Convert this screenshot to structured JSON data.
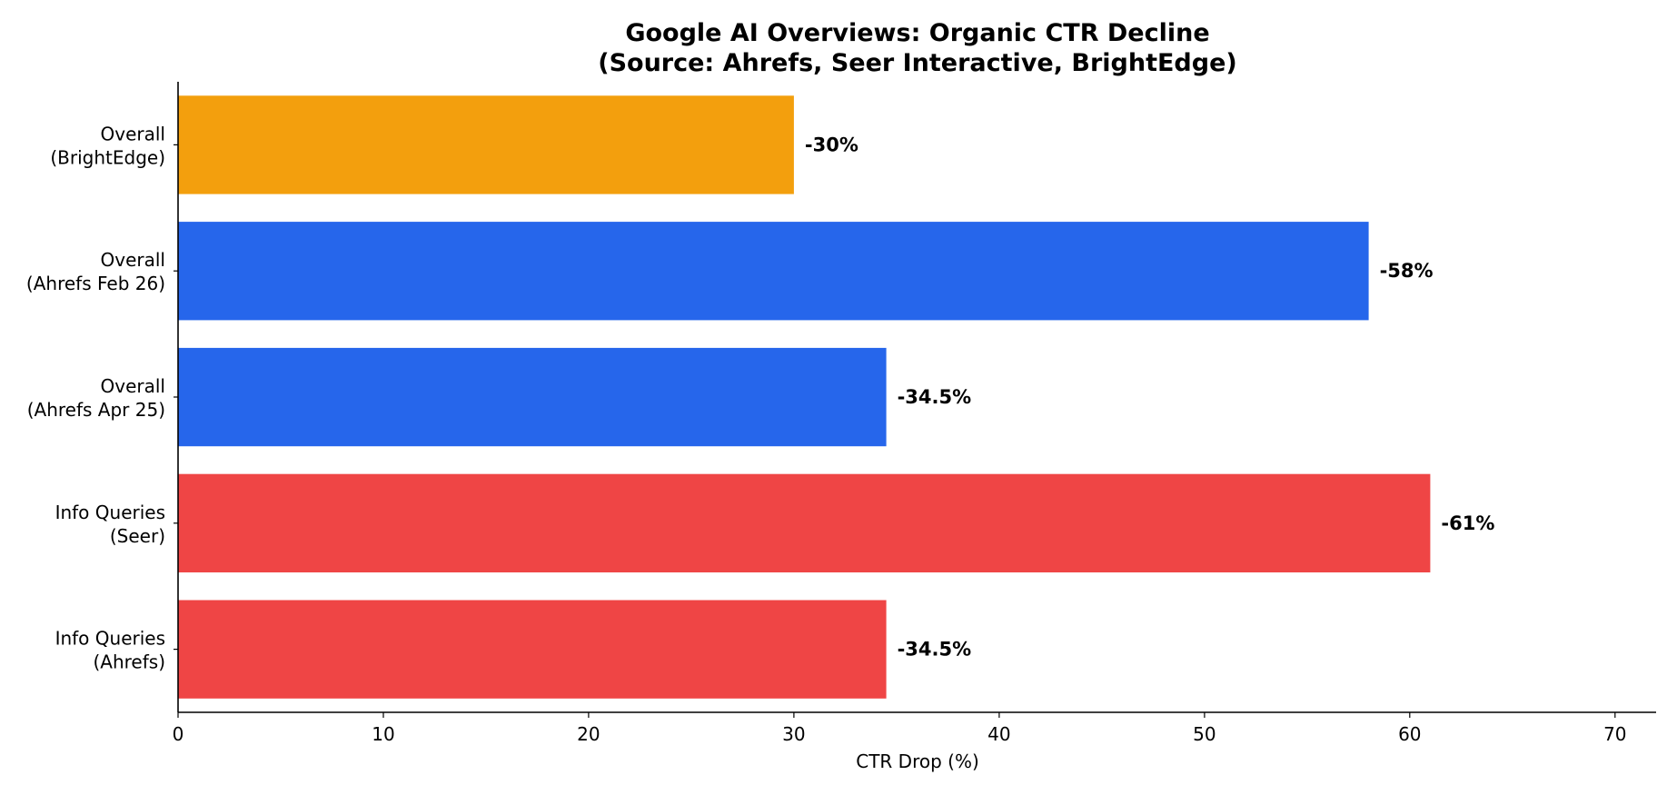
{
  "chart_data": {
    "type": "bar",
    "orientation": "horizontal",
    "title": {
      "line1": "Google AI Overviews: Organic CTR Decline",
      "line2": "(Source: Ahrefs, Seer Interactive, BrightEdge)"
    },
    "xlabel": "CTR Drop (%)",
    "ylabel": "",
    "xlim": [
      0,
      72
    ],
    "xticks": [
      0,
      10,
      20,
      30,
      40,
      50,
      60,
      70
    ],
    "grid": false,
    "categories": [
      [
        "Overall",
        "(BrightEdge)"
      ],
      [
        "Overall",
        "(Ahrefs Feb 26)"
      ],
      [
        "Overall",
        "(Ahrefs Apr 25)"
      ],
      [
        "Info Queries",
        "(Seer)"
      ],
      [
        "Info Queries",
        "(Ahrefs)"
      ]
    ],
    "values": [
      30,
      58,
      34.5,
      61,
      34.5
    ],
    "data_labels": [
      "-30%",
      "-58%",
      "-34.5%",
      "-61%",
      "-34.5%"
    ],
    "bar_colors": [
      "#F39F0D",
      "#2666EB",
      "#2666EB",
      "#EF4545",
      "#EF4545"
    ]
  }
}
